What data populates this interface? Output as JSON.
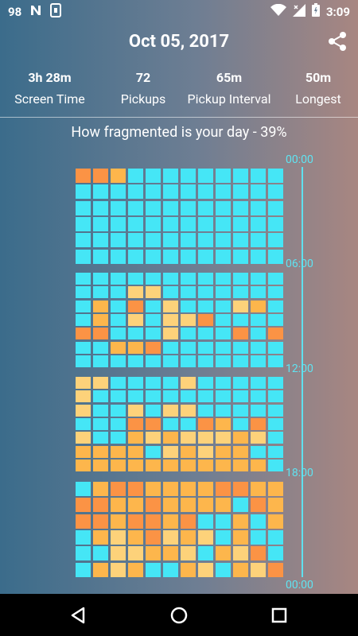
{
  "status_bar": {
    "battery_percent_label": "98",
    "left_icons": [
      "n-notification-icon",
      "phone-notification-icon"
    ],
    "right_icons": [
      "wifi-icon",
      "signal-icon",
      "battery-icon"
    ],
    "time": "3:09"
  },
  "header": {
    "title": "Oct 05, 2017",
    "share_icon": "share-icon"
  },
  "stats": [
    {
      "value": "3h 28m",
      "label": "Screen Time"
    },
    {
      "value": "72",
      "label": "Pickups"
    },
    {
      "value": "65m",
      "label": "Pickup Interval"
    },
    {
      "value": "50m",
      "label": "Longest"
    }
  ],
  "fragmentation_text": "How fragmented is your day - 39%",
  "timeline_labels": [
    "00:00",
    "06:00",
    "12:00",
    "18:00",
    "00:00"
  ],
  "colors": {
    "cyan": "#45e6f6",
    "light": "#fdd27a",
    "mid": "#fdb64c",
    "dark": "#fb9345"
  },
  "grid_legend": {
    "c": "cyan",
    "l": "light",
    "m": "mid",
    "d": "dark"
  },
  "grid_rows": [
    "ddmcccccccccc",
    "cccccccccccc",
    "cccccccccccc",
    "cccccccccccc",
    "cccccccccccc",
    "cccccccccccc",
    "cccccccccccc",
    "cccllccccccc",
    "cmcdclccclmc",
    "cmclclldcccc",
    "ddccclcccdcd",
    "ccmmdccccccc",
    "cccccccccccc",
    "llcccclcccccc",
    "lccccccccccc",
    "lcclcllccccc",
    "cccddccdmcdcc",
    "lccmlmlllmlcc",
    "mmmmclmlmmccc",
    "mmmmmmmmmmmcc",
    "cmddmmmmddmmm",
    "ddmmdmmmmcdmm",
    "ddmddmdccmcml",
    "cmlmdlmlcmccc",
    "ccllmmlcmldcc",
    "cmlmccmlcmldd"
  ]
}
